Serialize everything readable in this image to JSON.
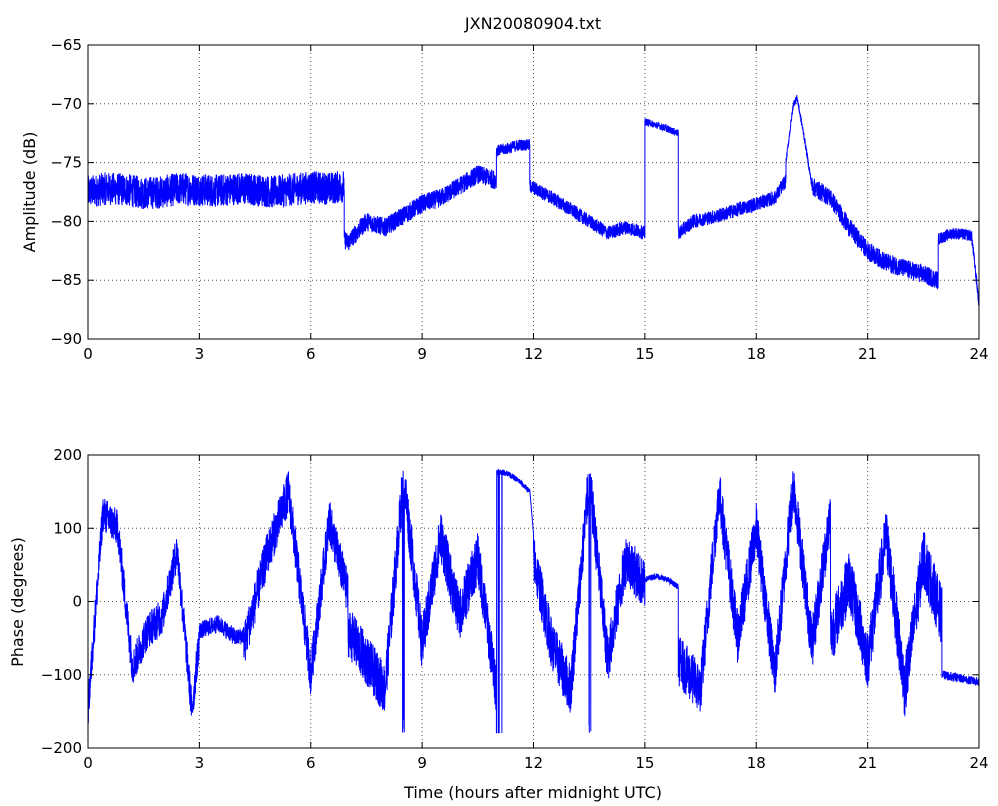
{
  "title": "JXN20080904.txt",
  "chart_data": [
    {
      "type": "line",
      "name": "amplitude",
      "title": "JXN20080904.txt",
      "xlabel": "",
      "ylabel": "Amplitude (dB)",
      "xlim": [
        0,
        24
      ],
      "ylim": [
        -90,
        -65
      ],
      "xticks": [
        0,
        3,
        6,
        9,
        12,
        15,
        18,
        21,
        24
      ],
      "yticks": [
        -90,
        -85,
        -80,
        -75,
        -70,
        -65
      ],
      "grid": true,
      "color": "#0000ff",
      "segments": [
        {
          "x": [
            0,
            0.5,
            1,
            1.5,
            2,
            2.5,
            3,
            3.5,
            4,
            4.5,
            5,
            5.5,
            6,
            6.5,
            6.9
          ],
          "y": [
            -77.5,
            -77.2,
            -77.3,
            -77.6,
            -77.5,
            -77.2,
            -77.3,
            -77.4,
            -77.2,
            -77.3,
            -77.5,
            -77.3,
            -77.1,
            -77.2,
            -77.0
          ],
          "noise": 1.4
        },
        {
          "x": [
            6.9,
            7.0,
            7.5,
            8,
            8.5,
            9,
            9.5,
            10,
            10.5,
            11
          ],
          "y": [
            -81.5,
            -81.8,
            -80.0,
            -80.5,
            -79.5,
            -78.5,
            -78.0,
            -77.0,
            -76.0,
            -76.5
          ],
          "noise": 0.8
        },
        {
          "x": [
            11,
            11.3,
            11.6,
            11.9
          ],
          "y": [
            -74.0,
            -73.8,
            -73.5,
            -73.5
          ],
          "noise": 0.5
        },
        {
          "x": [
            11.9,
            12.5,
            13,
            13.5,
            14,
            14.5,
            15
          ],
          "y": [
            -77.0,
            -78.0,
            -79.0,
            -80.0,
            -81.0,
            -80.5,
            -81.0
          ],
          "noise": 0.6
        },
        {
          "x": [
            15,
            15.5,
            15.9
          ],
          "y": [
            -71.5,
            -72.0,
            -72.5
          ],
          "noise": 0.3
        },
        {
          "x": [
            15.9,
            16.3,
            17,
            17.5,
            18,
            18.5,
            18.8
          ],
          "y": [
            -81.0,
            -80.0,
            -79.5,
            -79.0,
            -78.5,
            -78.0,
            -76.5
          ],
          "noise": 0.6
        },
        {
          "x": [
            18.8,
            19.0,
            19.1,
            19.3,
            19.5
          ],
          "y": [
            -75.0,
            -70.0,
            -69.5,
            -73.0,
            -77.0
          ],
          "noise": 0.3
        },
        {
          "x": [
            19.5,
            20,
            20.5,
            21,
            21.5,
            22,
            22.5,
            22.9
          ],
          "y": [
            -77.0,
            -78.0,
            -80.5,
            -82.5,
            -83.5,
            -84.0,
            -84.5,
            -85.0
          ],
          "noise": 0.8
        },
        {
          "x": [
            22.9,
            23.3,
            23.8,
            24
          ],
          "y": [
            -81.5,
            -81.0,
            -81.2,
            -87.0
          ],
          "noise": 0.5
        }
      ]
    },
    {
      "type": "line",
      "name": "phase",
      "title": "",
      "xlabel": "Time (hours after midnight UTC)",
      "ylabel": "Phase (degrees)",
      "xlim": [
        0,
        24
      ],
      "ylim": [
        -200,
        200
      ],
      "xticks": [
        0,
        3,
        6,
        9,
        12,
        15,
        18,
        21,
        24
      ],
      "yticks": [
        -200,
        -100,
        0,
        100,
        200
      ],
      "grid": true,
      "color": "#0000ff",
      "wrap": [
        -180,
        180
      ],
      "segments": [
        {
          "x": [
            0,
            0.4,
            0.8,
            1.2,
            1.6,
            2.0,
            2.4,
            2.8,
            3.0
          ],
          "y": [
            -150,
            120,
            100,
            -90,
            -40,
            -20,
            70,
            -150,
            -50
          ],
          "noise": 25
        },
        {
          "x": [
            3.0,
            3.5,
            4.0,
            4.2
          ],
          "y": [
            -40,
            -30,
            -50,
            -45
          ],
          "noise": 12
        },
        {
          "x": [
            4.2,
            4.8,
            5.4,
            6.0,
            6.5,
            7.0
          ],
          "y": [
            -60,
            60,
            150,
            -100,
            110,
            10
          ],
          "noise": 30
        },
        {
          "x": [
            7.0,
            7.5,
            8.0,
            8.5,
            9.0,
            9.5,
            10.0,
            10.5,
            11.0
          ],
          "y": [
            -40,
            -80,
            -120,
            170,
            -60,
            90,
            -20,
            60,
            -120
          ],
          "noise": 35
        },
        {
          "x": [
            11.0,
            11.3,
            11.6,
            11.9
          ],
          "y": [
            178,
            175,
            165,
            150
          ],
          "noise": 4
        },
        {
          "x": [
            12.0,
            12.5,
            13.0,
            13.5,
            14.0,
            14.5,
            15.0
          ],
          "y": [
            60,
            -60,
            -120,
            170,
            -80,
            60,
            20
          ],
          "noise": 35
        },
        {
          "x": [
            15.0,
            15.3,
            15.6,
            15.9
          ],
          "y": [
            30,
            35,
            30,
            20
          ],
          "noise": 4
        },
        {
          "x": [
            15.9,
            16.5,
            17.0,
            17.5,
            18.0,
            18.5,
            19.0,
            19.5,
            20.0
          ],
          "y": [
            -80,
            -120,
            150,
            -50,
            100,
            -100,
            160,
            -60,
            120
          ],
          "noise": 35
        },
        {
          "x": [
            20.0,
            20.5,
            21.0,
            21.5,
            22.0,
            22.5,
            23.0
          ],
          "y": [
            -50,
            30,
            -80,
            90,
            -120,
            60,
            -20
          ],
          "noise": 40
        },
        {
          "x": [
            23.0,
            23.5,
            24.0
          ],
          "y": [
            -100,
            -105,
            -110
          ],
          "noise": 6
        }
      ]
    }
  ]
}
